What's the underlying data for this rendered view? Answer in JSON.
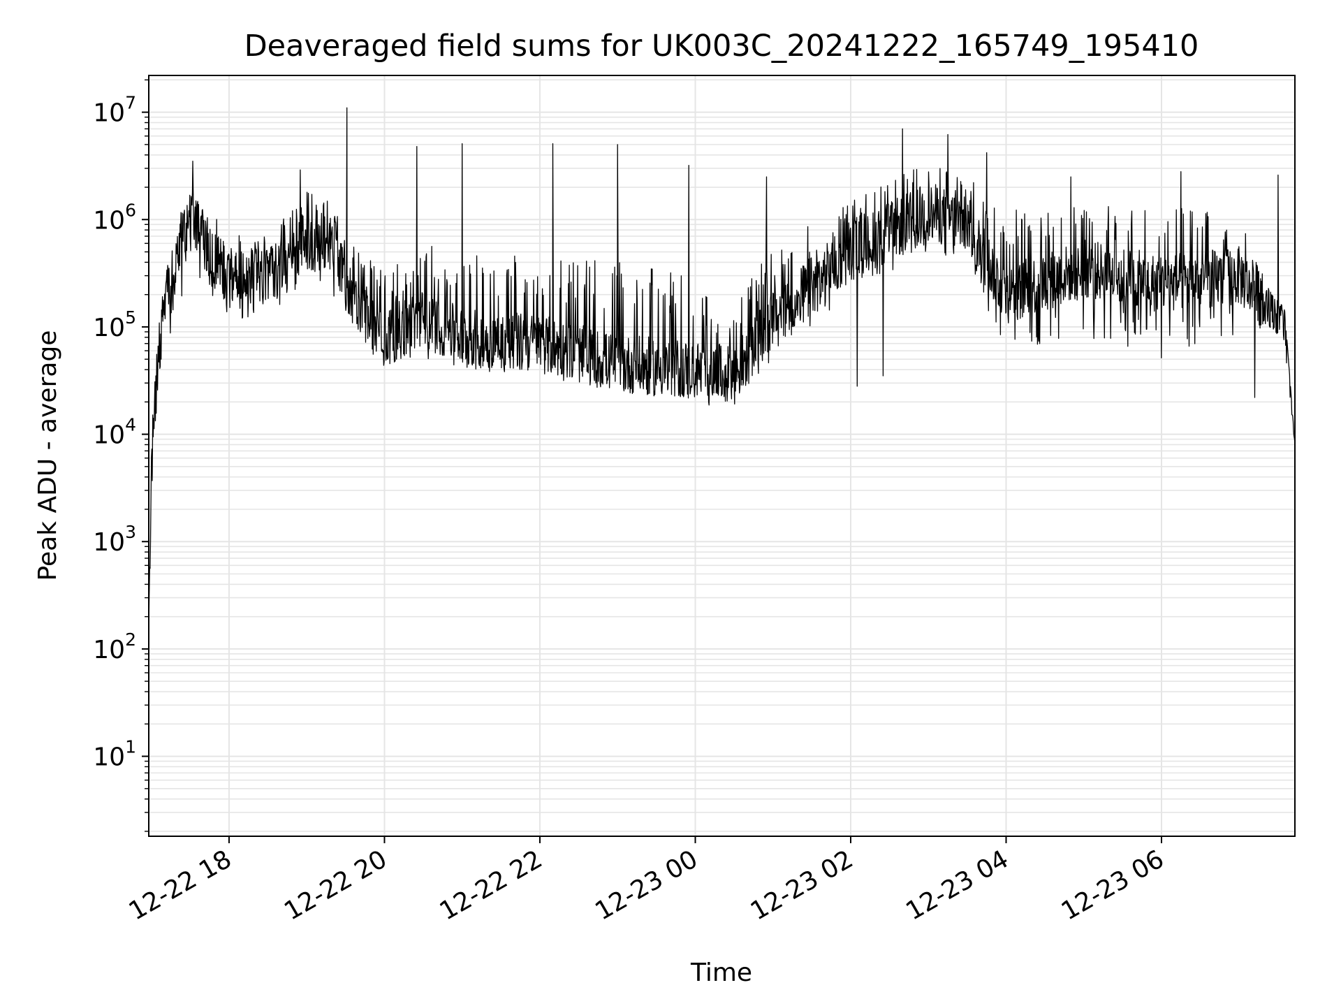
{
  "chart_data": {
    "type": "line",
    "title": "Deaveraged field sums for UK003C_20241222_165749_195410",
    "xlabel": "Time",
    "ylabel": "Peak ADU - average",
    "x_type": "datetime",
    "xlim": [
      "2024-12-22 16:58",
      "2024-12-23 07:43"
    ],
    "ylim": [
      1.8,
      22000000
    ],
    "yscale": "log",
    "grid": true,
    "line_color": "#000000",
    "grid_color": "#e5e5e5",
    "x_ticks": [
      "12-22 18",
      "12-22 20",
      "12-22 22",
      "12-23 00",
      "12-23 02",
      "12-23 04",
      "12-23 06"
    ],
    "x_tick_times": [
      "2024-12-22 18:00",
      "2024-12-22 20:00",
      "2024-12-22 22:00",
      "2024-12-23 00:00",
      "2024-12-23 02:00",
      "2024-12-23 04:00",
      "2024-12-23 06:00"
    ],
    "y_ticks": [
      {
        "base": "10",
        "exp": "1",
        "value": 10
      },
      {
        "base": "10",
        "exp": "2",
        "value": 100
      },
      {
        "base": "10",
        "exp": "3",
        "value": 1000
      },
      {
        "base": "10",
        "exp": "4",
        "value": 10000
      },
      {
        "base": "10",
        "exp": "5",
        "value": 100000
      },
      {
        "base": "10",
        "exp": "6",
        "value": 1000000
      },
      {
        "base": "10",
        "exp": "7",
        "value": 10000000
      }
    ],
    "series": [
      {
        "envelope": [
          {
            "t": "2024-12-22 16:58",
            "low": 150,
            "base": 150,
            "high": 150
          },
          {
            "t": "2024-12-22 17:00",
            "low": 2000,
            "base": 5000,
            "high": 10000
          },
          {
            "t": "2024-12-22 17:05",
            "low": 20000,
            "base": 50000,
            "high": 80000
          },
          {
            "t": "2024-12-22 17:10",
            "low": 60000,
            "base": 150000,
            "high": 300000
          },
          {
            "t": "2024-12-22 17:20",
            "low": 100000,
            "base": 400000,
            "high": 900000
          },
          {
            "t": "2024-12-22 17:30",
            "low": 400000,
            "base": 1200000,
            "high": 2300000
          },
          {
            "t": "2024-12-22 17:45",
            "low": 200000,
            "base": 450000,
            "high": 1200000
          },
          {
            "t": "2024-12-22 18:00",
            "low": 110000,
            "base": 300000,
            "high": 800000
          },
          {
            "t": "2024-12-22 18:30",
            "low": 120000,
            "base": 280000,
            "high": 700000
          },
          {
            "t": "2024-12-22 19:00",
            "low": 250000,
            "base": 650000,
            "high": 2000000
          },
          {
            "t": "2024-12-22 19:20",
            "low": 200000,
            "base": 500000,
            "high": 1400000
          },
          {
            "t": "2024-12-22 19:40",
            "low": 60000,
            "base": 150000,
            "high": 500000
          },
          {
            "t": "2024-12-22 20:00",
            "low": 40000,
            "base": 80000,
            "high": 350000
          },
          {
            "t": "2024-12-22 20:30",
            "low": 50000,
            "base": 120000,
            "high": 600000
          },
          {
            "t": "2024-12-22 21:00",
            "low": 40000,
            "base": 80000,
            "high": 500000
          },
          {
            "t": "2024-12-22 22:00",
            "low": 35000,
            "base": 70000,
            "high": 500000
          },
          {
            "t": "2024-12-22 23:00",
            "low": 25000,
            "base": 45000,
            "high": 400000
          },
          {
            "t": "2024-12-23 00:00",
            "low": 20000,
            "base": 40000,
            "high": 300000
          },
          {
            "t": "2024-12-23 00:30",
            "low": 16000,
            "base": 35000,
            "high": 150000
          },
          {
            "t": "2024-12-23 01:00",
            "low": 50000,
            "base": 120000,
            "high": 600000
          },
          {
            "t": "2024-12-23 02:00",
            "low": 200000,
            "base": 500000,
            "high": 1500000
          },
          {
            "t": "2024-12-23 03:00",
            "low": 500000,
            "base": 1200000,
            "high": 3500000
          },
          {
            "t": "2024-12-23 03:30",
            "low": 400000,
            "base": 900000,
            "high": 2500000
          },
          {
            "t": "2024-12-23 04:00",
            "low": 50000,
            "base": 200000,
            "high": 1300000
          },
          {
            "t": "2024-12-23 05:00",
            "low": 80000,
            "base": 350000,
            "high": 1400000
          },
          {
            "t": "2024-12-23 06:00",
            "low": 50000,
            "base": 250000,
            "high": 1300000
          },
          {
            "t": "2024-12-23 07:00",
            "low": 80000,
            "base": 300000,
            "high": 1300000
          },
          {
            "t": "2024-12-23 07:25",
            "low": 100000,
            "base": 150000,
            "high": 200000
          },
          {
            "t": "2024-12-23 07:35",
            "low": 70000,
            "base": 120000,
            "high": 150000
          },
          {
            "t": "2024-12-23 07:43",
            "low": 8000,
            "base": 8000,
            "high": 8000
          }
        ],
        "spikes": [
          {
            "t": "2024-12-22 17:32",
            "value": 3500000
          },
          {
            "t": "2024-12-22 18:55",
            "value": 2900000
          },
          {
            "t": "2024-12-22 19:31",
            "value": 11000000
          },
          {
            "t": "2024-12-22 20:25",
            "value": 4800000
          },
          {
            "t": "2024-12-22 21:00",
            "value": 5100000
          },
          {
            "t": "2024-12-22 22:10",
            "value": 5100000
          },
          {
            "t": "2024-12-22 23:00",
            "value": 5000000
          },
          {
            "t": "2024-12-22 23:55",
            "value": 3200000
          },
          {
            "t": "2024-12-23 00:55",
            "value": 2500000
          },
          {
            "t": "2024-12-23 02:40",
            "value": 7000000
          },
          {
            "t": "2024-12-23 03:15",
            "value": 6200000
          },
          {
            "t": "2024-12-23 03:45",
            "value": 4200000
          },
          {
            "t": "2024-12-23 04:50",
            "value": 2500000
          },
          {
            "t": "2024-12-23 06:15",
            "value": 2800000
          },
          {
            "t": "2024-12-23 07:30",
            "value": 2600000
          }
        ],
        "dips": [
          {
            "t": "2024-12-23 02:25",
            "value": 35000
          },
          {
            "t": "2024-12-23 02:05",
            "value": 28000
          },
          {
            "t": "2024-12-23 07:12",
            "value": 22000
          }
        ]
      }
    ]
  }
}
